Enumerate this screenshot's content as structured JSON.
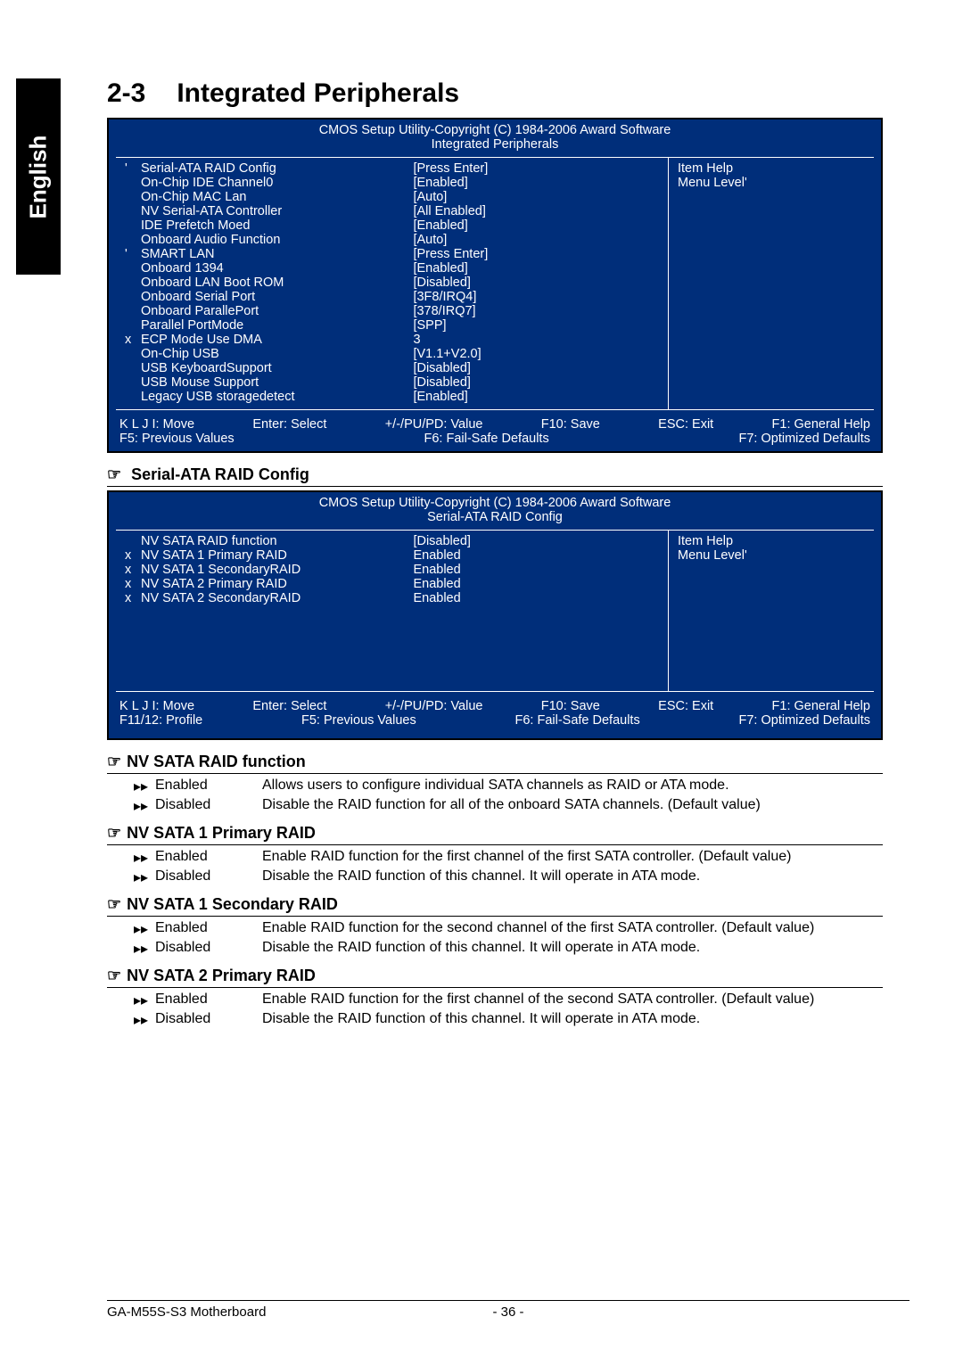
{
  "lang_tab": "English",
  "section_number": "2-3",
  "section_title": "Integrated Peripherals",
  "bios1": {
    "header1": "CMOS Setup Utility-Copyright (C) 1984-2006 Award Software",
    "header2": "Integrated Peripherals",
    "rows": [
      {
        "m": "'",
        "l": "Serial-ATA RAID Config",
        "v": "[Press Enter]"
      },
      {
        "m": "",
        "l": "On-Chip IDE Channel0",
        "v": "[Enabled]"
      },
      {
        "m": "",
        "l": "On-Chip MAC Lan",
        "v": "[Auto]"
      },
      {
        "m": "",
        "l": "NV Serial-ATA Controller",
        "v": "[All Enabled]"
      },
      {
        "m": "",
        "l": "IDE Prefetch Moed",
        "v": "[Enabled]"
      },
      {
        "m": "",
        "l": "Onboard Audio Function",
        "v": "[Auto]"
      },
      {
        "m": "'",
        "l": "SMART LAN",
        "v": "[Press Enter]"
      },
      {
        "m": "",
        "l": "Onboard 1394",
        "v": "[Enabled]"
      },
      {
        "m": "",
        "l": "Onboard LAN Boot ROM",
        "v": "[Disabled]"
      },
      {
        "m": "",
        "l": "Onboard Serial Port",
        "v": "[3F8/IRQ4]"
      },
      {
        "m": "",
        "l": "Onboard ParallePort",
        "v": "[378/IRQ7]"
      },
      {
        "m": "",
        "l": "Parallel PortMode",
        "v": "[SPP]"
      },
      {
        "m": "x",
        "l": "ECP Mode Use DMA",
        "v": "3"
      },
      {
        "m": "",
        "l": "On-Chip USB",
        "v": "[V1.1+V2.0]"
      },
      {
        "m": "",
        "l": "USB KeyboardSupport",
        "v": "[Disabled]"
      },
      {
        "m": "",
        "l": "USB Mouse Support",
        "v": "[Disabled]"
      },
      {
        "m": "",
        "l": "Legacy USB storagedetect",
        "v": "[Enabled]"
      }
    ],
    "help_title": "Item Help",
    "help_sub": "Menu Level'",
    "footer": [
      "K L J I: Move",
      "Enter: Select",
      "+/-/PU/PD: Value",
      "F10: Save",
      "ESC: Exit",
      "F1: General Help",
      "F5: Previous Values",
      "F6: Fail-Safe Defaults",
      "F7: Optimized Defaults"
    ]
  },
  "config_heading": "Serial-ATA RAID Config",
  "bios2": {
    "header1": "CMOS Setup Utility-Copyright (C) 1984-2006 Award Software",
    "header2": "Serial-ATA RAID Config",
    "rows": [
      {
        "m": "",
        "l": "NV SATA RAID function",
        "v": "[Disabled]"
      },
      {
        "m": "x",
        "l": "NV SATA 1 Primary RAID",
        "v": "Enabled"
      },
      {
        "m": "x",
        "l": "NV SATA 1 SecondaryRAID",
        "v": "Enabled"
      },
      {
        "m": "x",
        "l": "NV SATA 2 Primary RAID",
        "v": "Enabled"
      },
      {
        "m": "x",
        "l": "NV SATA 2 SecondaryRAID",
        "v": "Enabled"
      }
    ],
    "help_title": "Item Help",
    "help_sub": "Menu Level'",
    "footer": [
      "K L J I: Move",
      "Enter: Select",
      "+/-/PU/PD: Value",
      "F10: Save",
      "ESC: Exit",
      "F1: General Help",
      "F11/12: Profile",
      "F5: Previous Values",
      "F6: Fail-Safe Defaults",
      "F7: Optimized Defaults"
    ]
  },
  "explain": [
    {
      "title": "NV SATA RAID function",
      "opts": [
        {
          "k": "Enabled",
          "d": "Allows users to configure individual SATA channels as RAID or ATA mode."
        },
        {
          "k": "Disabled",
          "d": "Disable the RAID function for all of the onboard SATA channels. (Default value)"
        }
      ]
    },
    {
      "title": "NV SATA 1 Primary RAID",
      "opts": [
        {
          "k": "Enabled",
          "d": "Enable RAID function for the first channel of the first SATA controller. (Default value)"
        },
        {
          "k": "Disabled",
          "d": "Disable the RAID function of this channel. It will operate in ATA mode."
        }
      ]
    },
    {
      "title": "NV SATA 1 Secondary RAID",
      "opts": [
        {
          "k": "Enabled",
          "d": "Enable RAID function for the second channel of the first SATA controller. (Default value)"
        },
        {
          "k": "Disabled",
          "d": "Disable the RAID function of this channel. It will operate in ATA mode."
        }
      ]
    },
    {
      "title": "NV SATA 2 Primary RAID",
      "opts": [
        {
          "k": "Enabled",
          "d": "Enable RAID function for the first channel of the second SATA controller. (Default value)"
        },
        {
          "k": "Disabled",
          "d": "Disable the RAID function of this channel. It will operate in ATA mode."
        }
      ]
    }
  ],
  "bullet": "▸▸",
  "pointer": "☞",
  "footer_left": "GA-M55S-S3 Motherboard",
  "footer_center": "- 36 -",
  "colors": {
    "bios_bg": "#002e7a",
    "text_white": "#ffffff",
    "page_bg": "#ffffff"
  }
}
